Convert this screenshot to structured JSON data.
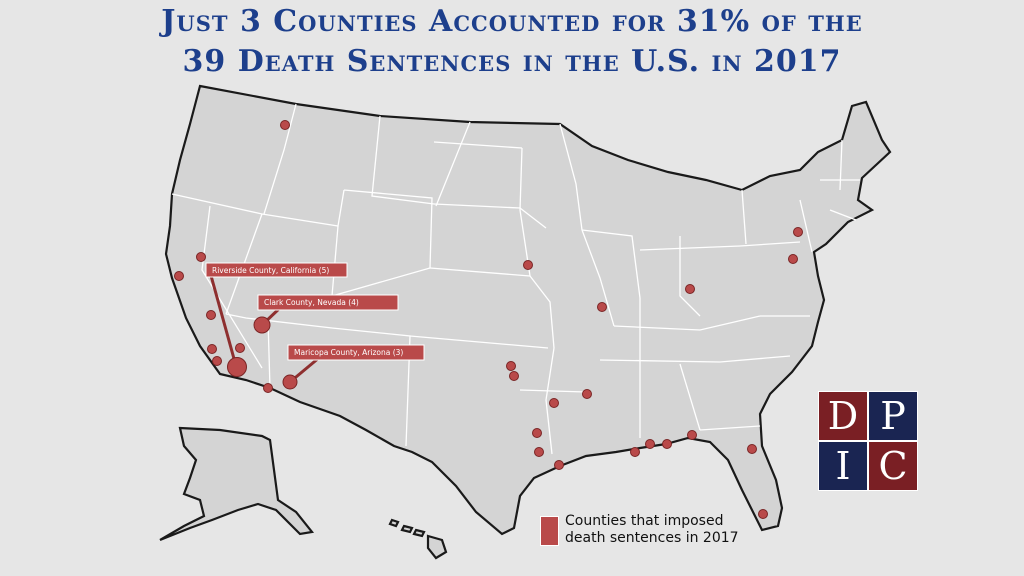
{
  "title": {
    "line1": "Just 3 Counties Accounted for 31% of the",
    "line2": "39 Death Sentences in the U.S. in 2017"
  },
  "callouts": [
    {
      "label": "Riverside County, California (5)"
    },
    {
      "label": "Clark County, Nevada (4)"
    },
    {
      "label": "Maricopa County, Arizona (3)"
    }
  ],
  "legend": {
    "line1": "Counties that imposed",
    "line2": "death sentences in 2017"
  },
  "logo": {
    "letters": [
      "D",
      "P",
      "I",
      "C"
    ]
  },
  "colors": {
    "title": "#1d3f8c",
    "dot": "#b94a4a",
    "land": "#d4d4d4",
    "logo_maroon": "#7a1f24",
    "logo_navy": "#1a2552"
  }
}
